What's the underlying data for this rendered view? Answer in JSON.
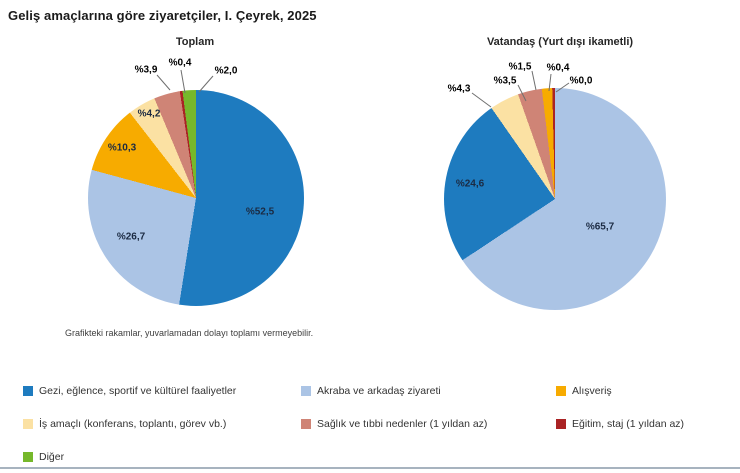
{
  "title": "Geliş amaçlarına göre ziyaretçiler, I. Çeyrek, 2025",
  "footnote": "Grafikteki rakamlar, yuvarlamadan dolayı toplamı vermeyebilir.",
  "colors": {
    "gezi": "#1E7BBF",
    "akraba": "#ABC4E5",
    "alisveris": "#F7AB00",
    "is_amacli": "#FBE1A3",
    "saglik": "#CF8476",
    "egitim": "#AA2324",
    "diger": "#76B82B",
    "bottom_rule": "#A7B3BF"
  },
  "chart_data": [
    {
      "type": "pie",
      "title": "Toplam",
      "unit": "percent",
      "slices": [
        {
          "category": "Gezi, eğlence, sportif ve kültürel faaliyetler",
          "value": 52.5,
          "value_label": "%52,5",
          "color": "#1E7BBF"
        },
        {
          "category": "Akraba ve arkadaş ziyareti",
          "value": 26.7,
          "value_label": "%26,7",
          "color": "#ABC4E5"
        },
        {
          "category": "Alışveriş",
          "value": 10.3,
          "value_label": "%10,3",
          "color": "#F7AB00"
        },
        {
          "category": "İş amaçlı (konferans, toplantı, görev vb.)",
          "value": 4.2,
          "value_label": "%4,2",
          "color": "#FBE1A3"
        },
        {
          "category": "Sağlık ve tıbbi nedenler (1 yıldan az)",
          "value": 3.9,
          "value_label": "%3,9",
          "color": "#CF8476"
        },
        {
          "category": "Eğitim, staj (1 yıldan az)",
          "value": 0.4,
          "value_label": "%0,4",
          "color": "#AA2324"
        },
        {
          "category": "Diğer",
          "value": 2.0,
          "value_label": "%2,0",
          "color": "#76B82B"
        }
      ]
    },
    {
      "type": "pie",
      "title": "Vatandaş (Yurt dışı ikametli)",
      "unit": "percent",
      "slices": [
        {
          "category": "Akraba ve arkadaş ziyareti",
          "value": 65.7,
          "value_label": "%65,7",
          "color": "#ABC4E5"
        },
        {
          "category": "Gezi, eğlence, sportif ve kültürel faaliyetler",
          "value": 24.6,
          "value_label": "%24,6",
          "color": "#1E7BBF"
        },
        {
          "category": "İş amaçlı (konferans, toplantı, görev vb.)",
          "value": 4.3,
          "value_label": "%4,3",
          "color": "#FBE1A3"
        },
        {
          "category": "Sağlık ve tıbbi nedenler (1 yıldan az)",
          "value": 3.5,
          "value_label": "%3,5",
          "color": "#CF8476"
        },
        {
          "category": "Alışveriş",
          "value": 1.5,
          "value_label": "%1,5",
          "color": "#F7AB00"
        },
        {
          "category": "Eğitim, staj (1 yıldan az)",
          "value": 0.4,
          "value_label": "%0,4",
          "color": "#AA2324"
        },
        {
          "category": "Diğer",
          "value": 0.0,
          "value_label": "%0,0",
          "color": "#76B82B"
        }
      ]
    }
  ],
  "legend": {
    "items": [
      {
        "label": "Gezi, eğlence, sportif ve kültürel faaliyetler",
        "color": "#1E7BBF"
      },
      {
        "label": "Akraba ve arkadaş ziyareti",
        "color": "#ABC4E5"
      },
      {
        "label": "Alışveriş",
        "color": "#F7AB00"
      },
      {
        "label": "İş amaçlı (konferans, toplantı, görev vb.)",
        "color": "#FBE1A3"
      },
      {
        "label": "Sağlık ve tıbbi nedenler (1 yıldan az)",
        "color": "#CF8476"
      },
      {
        "label": "Eğitim, staj (1 yıldan az)",
        "color": "#AA2324"
      },
      {
        "label": "Diğer",
        "color": "#76B82B"
      }
    ]
  }
}
